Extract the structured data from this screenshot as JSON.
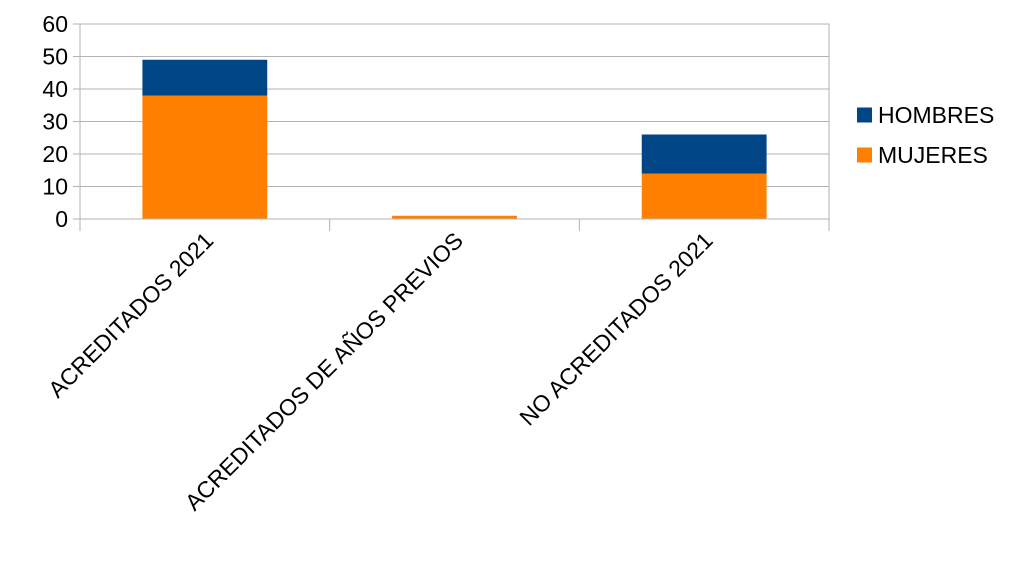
{
  "chart_data": {
    "type": "bar",
    "stacked": true,
    "categories": [
      "ACREDITADOS 2021",
      "ACREDITADOS DE AÑOS PREVIOS",
      "NO ACREDITADOS 2021"
    ],
    "series": [
      {
        "name": "MUJERES",
        "values": [
          38,
          1,
          14
        ],
        "color": "#ff8000"
      },
      {
        "name": "HOMBRES",
        "values": [
          11,
          0,
          12
        ],
        "color": "#004586"
      }
    ],
    "legend_order": [
      "HOMBRES",
      "MUJERES"
    ],
    "ylim": [
      0,
      60
    ],
    "yticks": [
      0,
      10,
      20,
      30,
      40,
      50,
      60
    ],
    "grid": true,
    "legend_position": "right",
    "gridline_color": "#b3b3b3"
  }
}
